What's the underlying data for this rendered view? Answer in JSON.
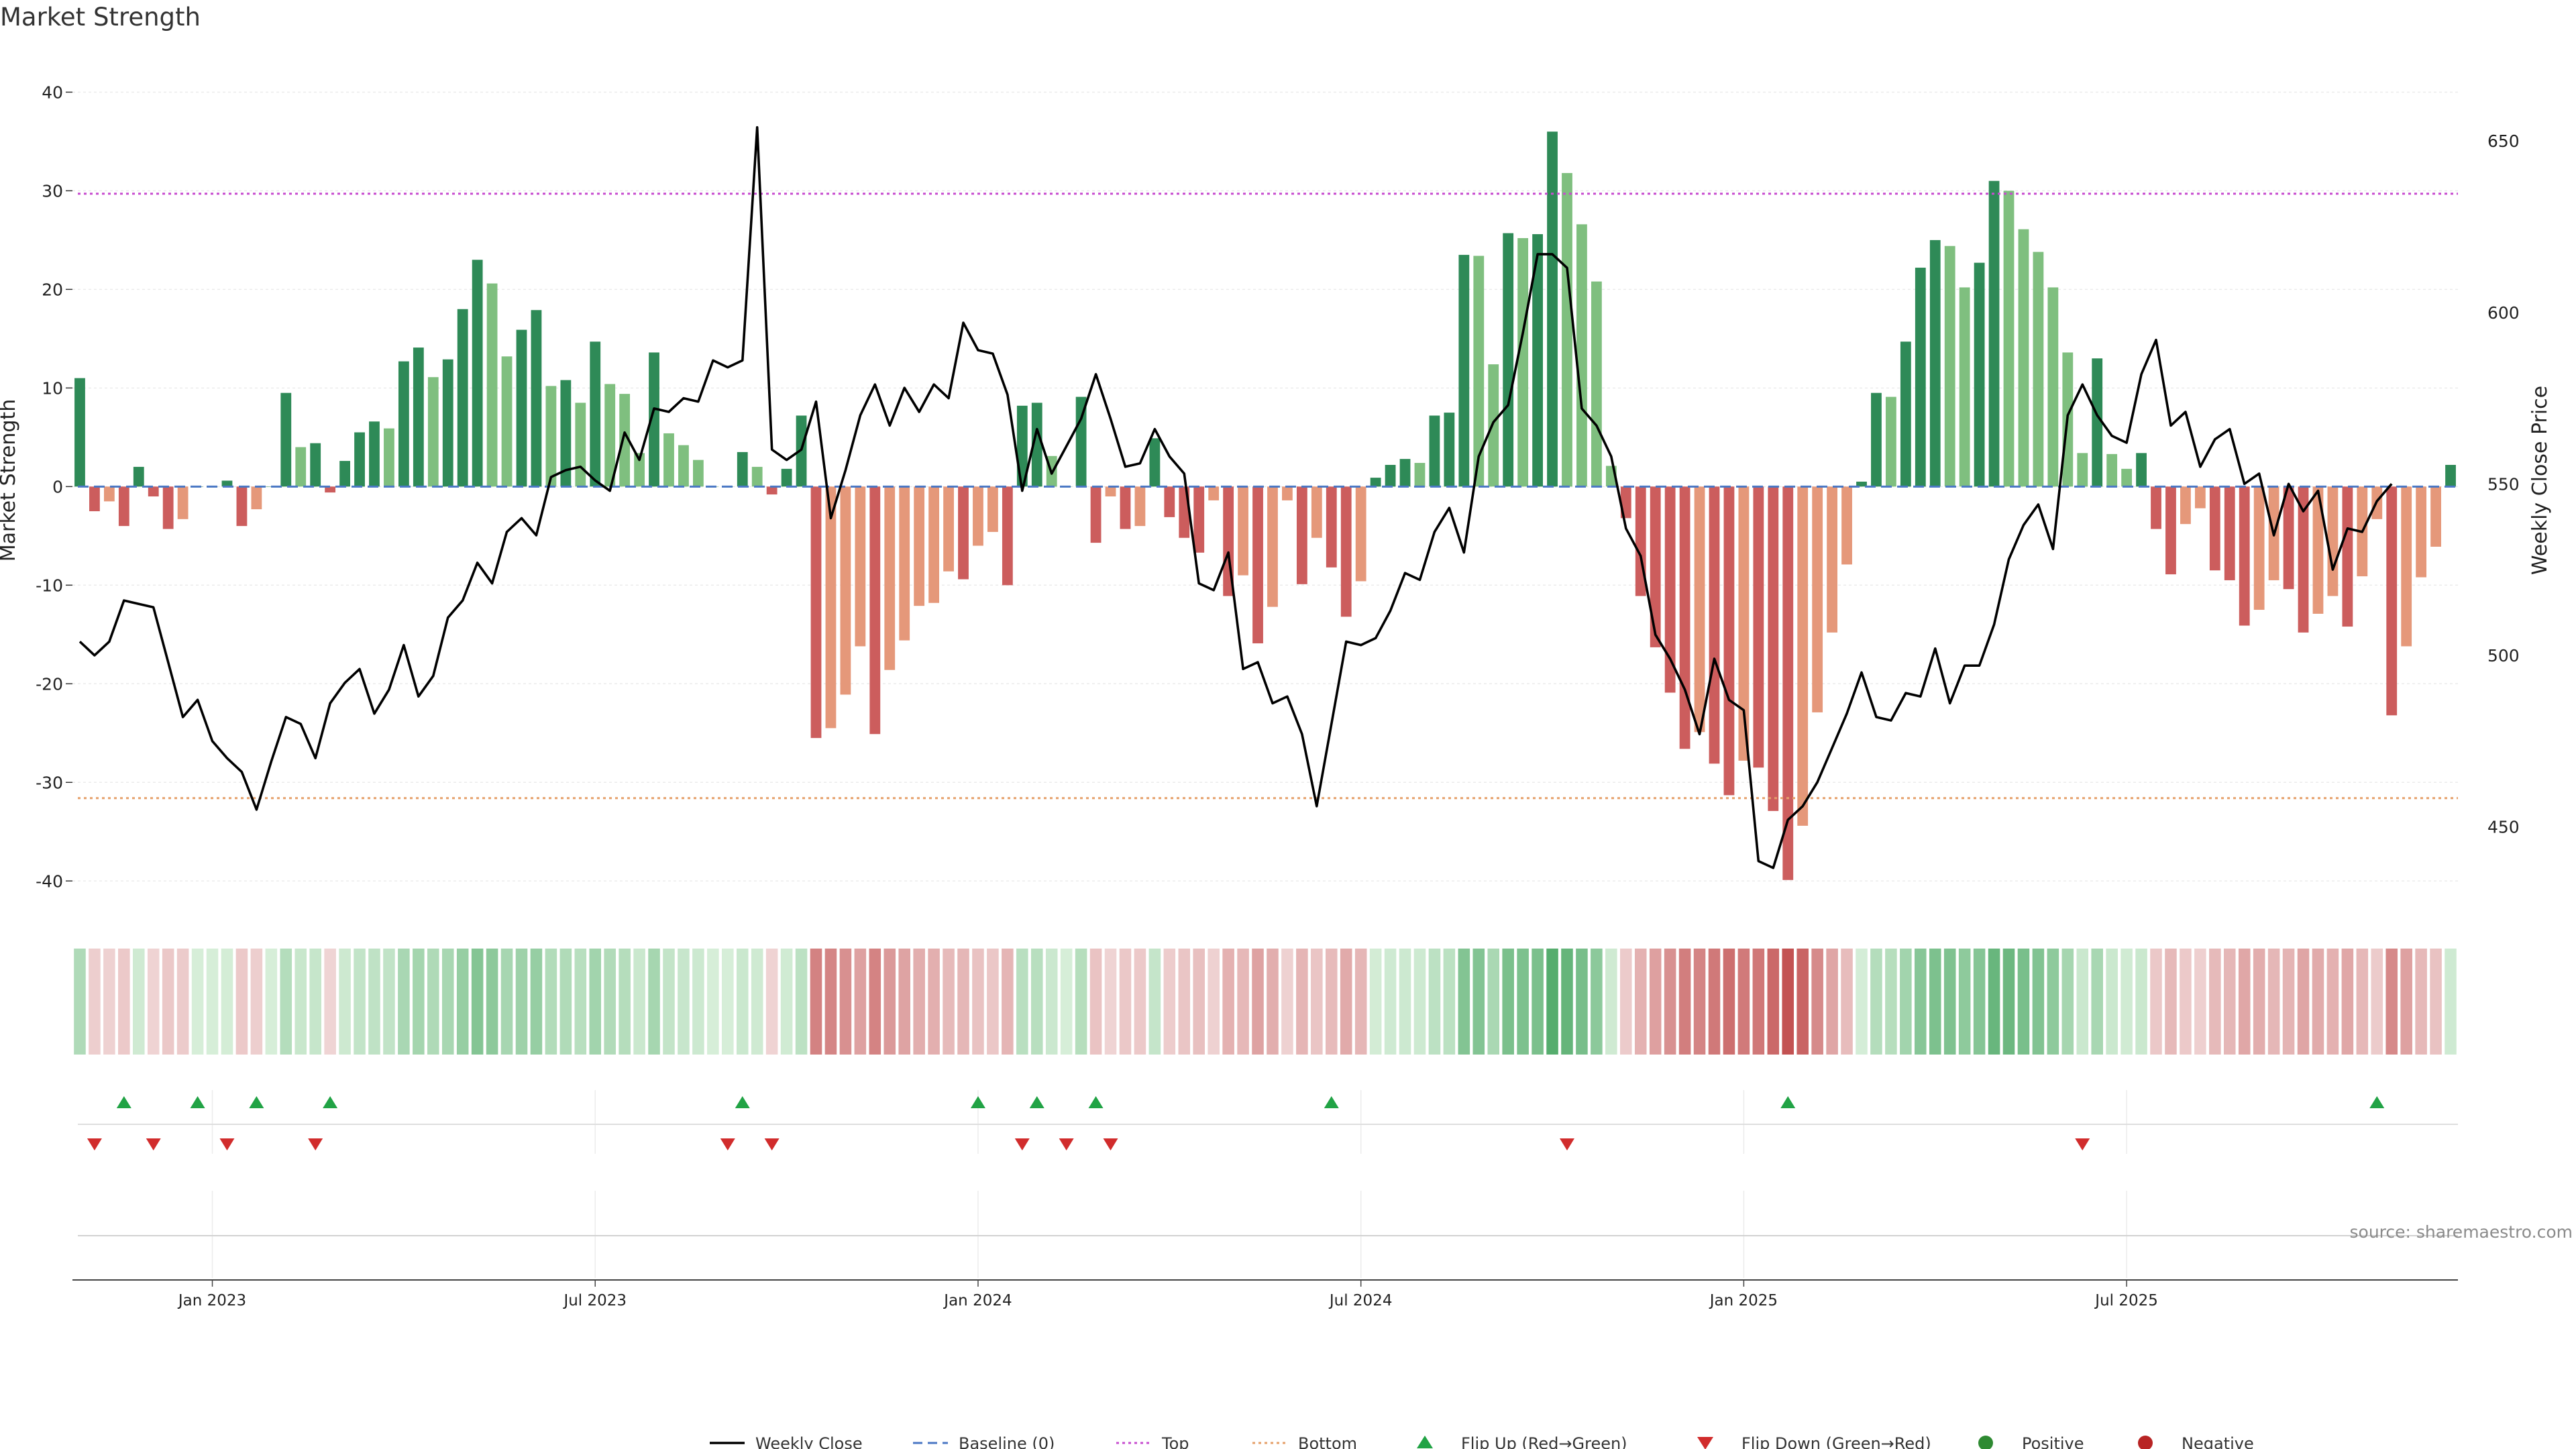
{
  "chart_data": {
    "type": "bar",
    "title": "Market Strength",
    "ylabel": "Market Strength",
    "y2label": "Weekly Close Price",
    "ylim": [
      -42.5,
      42
    ],
    "y2lim": [
      427,
      670
    ],
    "yticks": [
      40,
      30,
      20,
      10,
      0,
      -10,
      -20,
      -30,
      -40
    ],
    "y2ticks": [
      650,
      600,
      550,
      500,
      450
    ],
    "top_line": 29.7,
    "bottom_line": -31.6,
    "baseline": 0,
    "xticks": [
      {
        "label": "Jan 2023",
        "index": 9
      },
      {
        "label": "Jul 2023",
        "index": 35
      },
      {
        "label": "Jan 2024",
        "index": 61
      },
      {
        "label": "Jul 2024",
        "index": 87
      },
      {
        "label": "Jan 2025",
        "index": 113
      },
      {
        "label": "Jul 2025",
        "index": 139
      }
    ],
    "strength": [
      11,
      -2.5,
      -1.5,
      -4,
      2,
      -1,
      -4.3,
      -3.3,
      0,
      0,
      0.6,
      -4,
      -2.3,
      0,
      9.5,
      4,
      4.4,
      -0.6,
      2.6,
      5.5,
      6.6,
      5.9,
      12.7,
      14.1,
      11.1,
      12.9,
      18,
      23,
      20.6,
      13.2,
      15.9,
      17.9,
      10.2,
      10.8,
      8.5,
      14.7,
      10.4,
      9.4,
      3.4,
      13.6,
      5.4,
      4.2,
      2.7,
      0,
      0,
      3.5,
      2,
      -0.8,
      1.8,
      7.2,
      -25.5,
      -24.5,
      -21.1,
      -16.2,
      -25.1,
      -18.6,
      -15.6,
      -12.1,
      -11.8,
      -8.6,
      -9.4,
      -6,
      -4.6,
      -10,
      8.2,
      8.5,
      3.1,
      0,
      9.1,
      -5.7,
      -1,
      -4.3,
      -4,
      4.9,
      -3.1,
      -5.2,
      -6.7,
      -1.4,
      -11.1,
      -9,
      -15.9,
      -12.2,
      -1.4,
      -9.9,
      -5.2,
      -8.2,
      -13.2,
      -9.6,
      0.9,
      2.2,
      2.8,
      2.4,
      7.2,
      7.5,
      23.5,
      23.4,
      12.4,
      25.7,
      25.2,
      25.6,
      36,
      31.8,
      26.6,
      20.8,
      2.1,
      -3.2,
      -11.1,
      -16.3,
      -20.9,
      -26.6,
      -24.9,
      -28.1,
      -31.3,
      -27.8,
      -28.5,
      -32.9,
      -39.9,
      -34.4,
      -22.9,
      -14.8,
      -7.9,
      0.5,
      9.5,
      9.1,
      14.7,
      22.2,
      25,
      24.4,
      20.2,
      22.7,
      31,
      30,
      26.1,
      23.8,
      20.2,
      13.6,
      3.4,
      13,
      3.3,
      1.8,
      3.4,
      -4.3,
      -8.9,
      -3.8,
      -2.2,
      -8.5,
      -9.5,
      -14.1,
      -12.5,
      -9.5,
      -10.4,
      -14.8,
      -12.9,
      -11.1,
      -14.2,
      -9.1,
      -3.3,
      -23.2,
      -16.2,
      -9.2,
      -6.1,
      2.2
    ],
    "weekly_close": [
      504,
      500,
      504,
      516,
      515,
      514,
      498,
      482,
      487,
      475,
      470,
      466,
      455,
      469,
      482,
      480,
      470,
      486,
      492,
      496,
      483,
      490,
      503,
      488,
      494,
      511,
      516,
      527,
      521,
      536,
      540,
      535,
      552,
      554,
      555,
      551,
      548,
      565,
      557,
      572,
      571,
      575,
      574,
      586,
      584,
      586,
      654,
      560,
      557,
      560,
      574,
      540,
      554,
      570,
      579,
      567,
      578,
      571,
      579,
      575,
      597,
      589,
      588,
      576,
      548,
      566,
      553,
      561,
      569,
      582,
      569,
      555,
      556,
      566,
      558,
      553,
      521,
      519,
      530,
      496,
      498,
      486,
      488,
      477,
      456,
      480,
      504,
      503,
      505,
      513,
      524,
      522,
      536,
      543,
      530,
      558,
      568,
      573,
      594,
      617,
      617,
      613,
      572,
      567,
      558,
      537,
      529,
      506,
      499,
      490,
      477,
      499,
      487,
      484,
      440,
      438,
      452,
      456,
      463,
      473,
      483,
      495,
      482,
      481,
      489,
      488,
      502,
      486,
      497,
      497,
      509,
      528,
      538,
      544,
      531,
      570,
      579,
      570,
      564,
      562,
      582,
      592,
      567,
      571,
      555,
      563,
      566,
      550,
      553,
      535,
      550,
      542,
      548,
      525,
      537,
      536,
      545,
      550
    ],
    "flip_up_index": [
      3,
      8,
      12,
      17,
      45,
      61,
      65,
      69,
      85,
      116,
      156
    ],
    "flip_down_index": [
      1,
      5,
      10,
      16,
      44,
      47,
      64,
      67,
      70,
      101,
      136
    ],
    "colors": {
      "pos_strong": "#2e8a57",
      "pos_light": "#7fbf7f",
      "neg_strong": "#cc5d5d",
      "neg_light": "#e5987a",
      "weekly_close": "#000000",
      "baseline": "#4a77c4",
      "top": "#c74ccf",
      "bottom": "#e5a06a",
      "flip_up": "#21a345",
      "flip_down": "#d12c2c",
      "positive": "#2e8a32",
      "negative": "#b82424"
    },
    "legend": [
      {
        "label": "Weekly Close",
        "kind": "line-solid",
        "color": "#000000"
      },
      {
        "label": "Baseline (0)",
        "kind": "line-dash",
        "color": "#4a77c4"
      },
      {
        "label": "Top",
        "kind": "line-dot",
        "color": "#c74ccf"
      },
      {
        "label": "Bottom",
        "kind": "line-dot",
        "color": "#e5a06a"
      },
      {
        "label": "Flip Up (Red→Green)",
        "kind": "tri-up",
        "color": "#21a345"
      },
      {
        "label": "Flip Down (Green→Red)",
        "kind": "tri-down",
        "color": "#d12c2c"
      },
      {
        "label": "Positive",
        "kind": "dot",
        "color": "#2e8a32"
      },
      {
        "label": "Negative",
        "kind": "dot",
        "color": "#b82424"
      }
    ]
  },
  "source": "source: sharemaestro.com"
}
